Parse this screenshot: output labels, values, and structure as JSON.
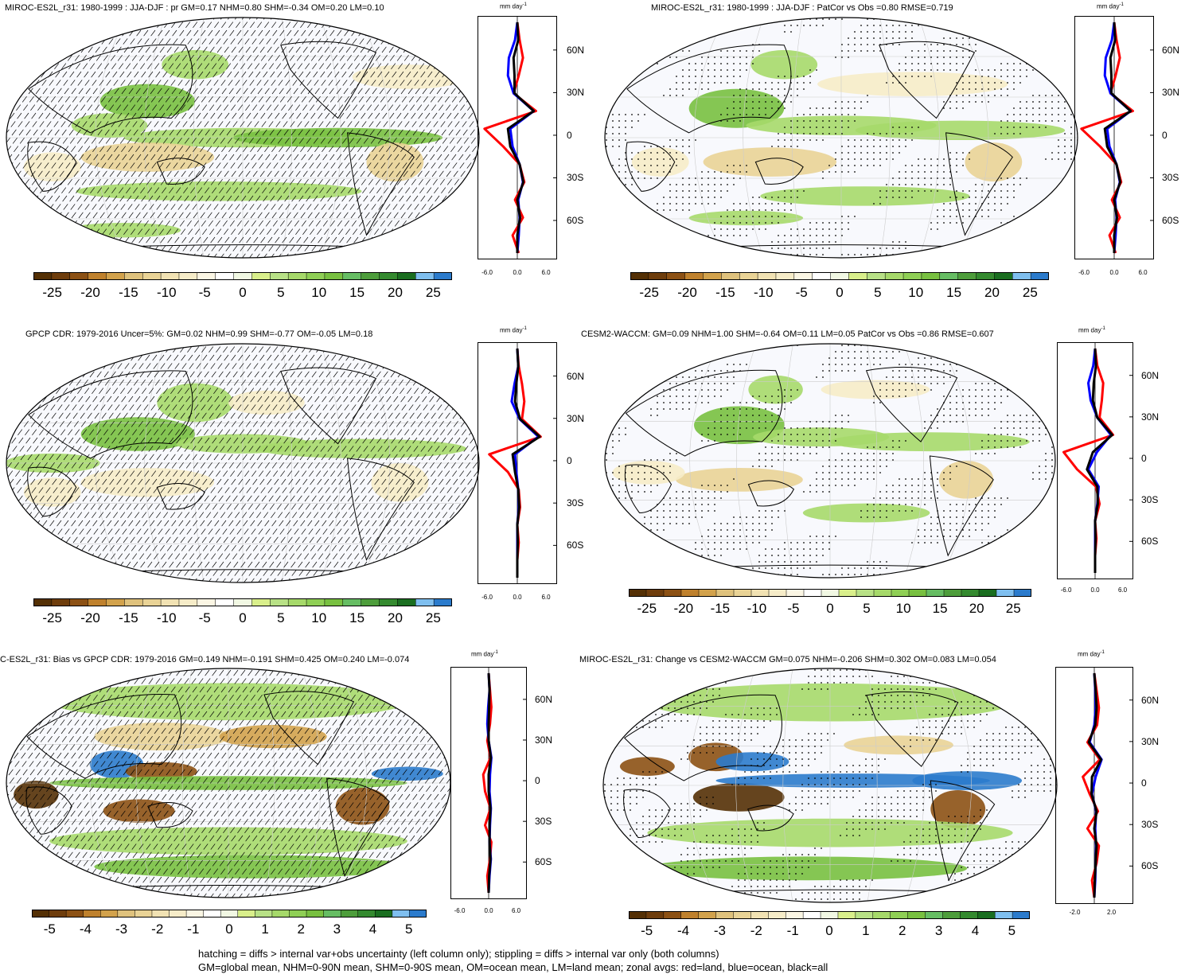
{
  "panels": [
    {
      "id": "p1",
      "title": "MIROC-ES2L_r31: 1980-1999 : JJA-DJF : pr GM=0.17 NHM=0.80 SHM=-0.34 OM=0.20 LM=0.10",
      "pattern": "hatch",
      "colorbar_labels": [
        "-25",
        "-20",
        "-15",
        "-10",
        "-5",
        "0",
        "5",
        "10",
        "15",
        "20",
        "25"
      ],
      "zonal_ticks": [
        "-6.0",
        "0.0",
        "6.0"
      ],
      "lat_labels": [
        "60N",
        "30N",
        "0",
        "30S",
        "60S"
      ]
    },
    {
      "id": "p2",
      "title": "MIROC-ES2L_r31: 1980-1999 : JJA-DJF : PatCor vs Obs =0.80 RMSE=0.719",
      "pattern": "stipple",
      "colorbar_labels": [
        "-25",
        "-20",
        "-15",
        "-10",
        "-5",
        "0",
        "5",
        "10",
        "15",
        "20",
        "25"
      ],
      "zonal_ticks": [
        "-6.0",
        "0.0",
        "6.0"
      ],
      "lat_labels": [
        "60N",
        "30N",
        "0",
        "30S",
        "60S"
      ]
    },
    {
      "id": "p3",
      "title": "GPCP CDR: 1979-2016 Uncer=5%: GM=0.02 NHM=0.99 SHM=-0.77 OM=-0.05 LM=0.18",
      "pattern": "hatch",
      "colorbar_labels": [
        "-25",
        "-20",
        "-15",
        "-10",
        "-5",
        "0",
        "5",
        "10",
        "15",
        "20",
        "25"
      ],
      "zonal_ticks": [
        "-6.0",
        "0.0",
        "6.0"
      ],
      "lat_labels": [
        "60N",
        "30N",
        "0",
        "30S",
        "60S"
      ]
    },
    {
      "id": "p4",
      "title": "CESM2-WACCM: GM=0.09 NHM=1.00 SHM=-0.64 OM=0.11 LM=0.05 PatCor vs Obs =0.86 RMSE=0.607",
      "pattern": "stipple",
      "colorbar_labels": [
        "-25",
        "-20",
        "-15",
        "-10",
        "-5",
        "0",
        "5",
        "10",
        "15",
        "20",
        "25"
      ],
      "zonal_ticks": [
        "-6.0",
        "0.0",
        "6.0"
      ],
      "lat_labels": [
        "60N",
        "30N",
        "0",
        "30S",
        "60S"
      ]
    },
    {
      "id": "p5",
      "title": "C-ES2L_r31: Bias vs GPCP CDR: 1979-2016 GM=0.149 NHM=-0.191 SHM=0.425 OM=0.240 LM=-0.074",
      "pattern": "hatch",
      "colorbar_labels": [
        "-5",
        "-4",
        "-3",
        "-2",
        "-1",
        "0",
        "1",
        "2",
        "3",
        "4",
        "5"
      ],
      "zonal_ticks": [
        "-6.0",
        "0.0",
        "6.0"
      ],
      "lat_labels": [
        "60N",
        "30N",
        "0",
        "30S",
        "60S"
      ]
    },
    {
      "id": "p6",
      "title": "MIROC-ES2L_r31: Change vs CESM2-WACCM GM=0.075 NHM=-0.206 SHM=0.302 OM=0.083 LM=0.054",
      "pattern": "stipple",
      "colorbar_labels": [
        "-5",
        "-4",
        "-3",
        "-2",
        "-1",
        "0",
        "1",
        "2",
        "3",
        "4",
        "5"
      ],
      "zonal_ticks": [
        "-2.0",
        "2.0"
      ],
      "lat_labels": [
        "60N",
        "30N",
        "0",
        "30S",
        "60S"
      ]
    }
  ],
  "zonal_unit": "mm day",
  "zonal_unit_exp": "-1",
  "colorbar_colors": [
    "#543005",
    "#6e3d0c",
    "#8c5114",
    "#bf812d",
    "#d2a24c",
    "#dfc27d",
    "#e9d396",
    "#f1e2b3",
    "#f6ecc8",
    "#fbf6e4",
    "#ffffff",
    "#f1f8e3",
    "#d9ef8b",
    "#b8e186",
    "#a6d96a",
    "#8fcf55",
    "#78c040",
    "#66bd63",
    "#4d9d3b",
    "#348a2f",
    "#1a6e20",
    "#7fbfef",
    "#2b7bcc"
  ],
  "legend_colors": {
    "land": "#ff0000",
    "ocean": "#0000ff",
    "all": "#000000"
  },
  "footer": {
    "line1": "hatching = diffs > internal var+obs uncertainty (left column only); stippling = diffs > internal var only (both columns)",
    "line2": "GM=global mean, NHM=0-90N mean, SHM=0-90S mean, OM=ocean mean, LM=land mean; zonal avgs: red=land, blue=ocean, black=all"
  }
}
